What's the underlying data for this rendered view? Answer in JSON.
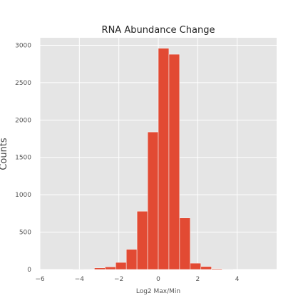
{
  "chart_data": {
    "type": "bar",
    "title": "RNA Abundance Change",
    "xlabel": "Log2 Max/Min",
    "ylabel": "Counts",
    "xlim": [
      -6,
      6
    ],
    "ylim": [
      0,
      3100
    ],
    "xticks": [
      -6,
      -4,
      -2,
      0,
      2,
      4
    ],
    "xtick_labels": [
      "−6",
      "−4",
      "−2",
      "0",
      "2",
      "4"
    ],
    "yticks": [
      0,
      500,
      1000,
      1500,
      2000,
      2500,
      3000
    ],
    "ytick_labels": [
      "0",
      "500",
      "1000",
      "1500",
      "2000",
      "2500",
      "3000"
    ],
    "bin_width": 0.54,
    "bins": [
      {
        "start": -4.32,
        "count": 2
      },
      {
        "start": -3.78,
        "count": 5
      },
      {
        "start": -3.24,
        "count": 22
      },
      {
        "start": -2.7,
        "count": 35
      },
      {
        "start": -2.16,
        "count": 95
      },
      {
        "start": -1.62,
        "count": 270
      },
      {
        "start": -1.08,
        "count": 780
      },
      {
        "start": -0.54,
        "count": 1840
      },
      {
        "start": 0.0,
        "count": 2960
      },
      {
        "start": 0.54,
        "count": 2880
      },
      {
        "start": 1.08,
        "count": 690
      },
      {
        "start": 1.62,
        "count": 85
      },
      {
        "start": 2.16,
        "count": 40
      },
      {
        "start": 2.7,
        "count": 12
      },
      {
        "start": 3.24,
        "count": 3
      }
    ],
    "grid": true,
    "colors": {
      "bar": "#e24a33",
      "bar_edge": "#f4f4f4",
      "plot_background": "#e5e5e5",
      "grid": "#ffffff"
    }
  }
}
